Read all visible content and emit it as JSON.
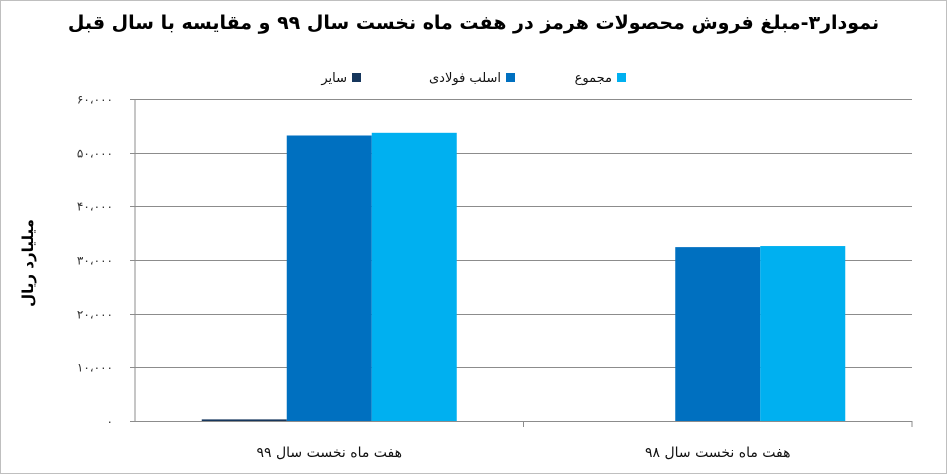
{
  "chart_data": {
    "type": "bar",
    "title": "نمودار۳-مبلغ فروش محصولات هرمز در هفت ماه نخست سال ۹۹ و مقایسه با سال قبل",
    "ylabel": "میلیارد ریال",
    "xlabel": "",
    "ylim": [
      0,
      60000
    ],
    "yticks": [
      0,
      10000,
      20000,
      30000,
      40000,
      50000,
      60000
    ],
    "ytick_labels": [
      "۰",
      "۱۰،۰۰۰",
      "۲۰،۰۰۰",
      "۳۰،۰۰۰",
      "۴۰،۰۰۰",
      "۵۰،۰۰۰",
      "۶۰،۰۰۰"
    ],
    "grid": true,
    "legend_position": "top",
    "categories": [
      "هفت ماه نخست سال ۹۹",
      "هفت ماه نخست سال ۹۸"
    ],
    "series": [
      {
        "name": "سایر",
        "color": "#16365c",
        "values": [
          300,
          0
        ]
      },
      {
        "name": "اسلب فولادی",
        "color": "#0070c0",
        "values": [
          53200,
          32400
        ]
      },
      {
        "name": "مجموع",
        "color": "#00b0f0",
        "values": [
          53700,
          32600
        ]
      }
    ]
  }
}
